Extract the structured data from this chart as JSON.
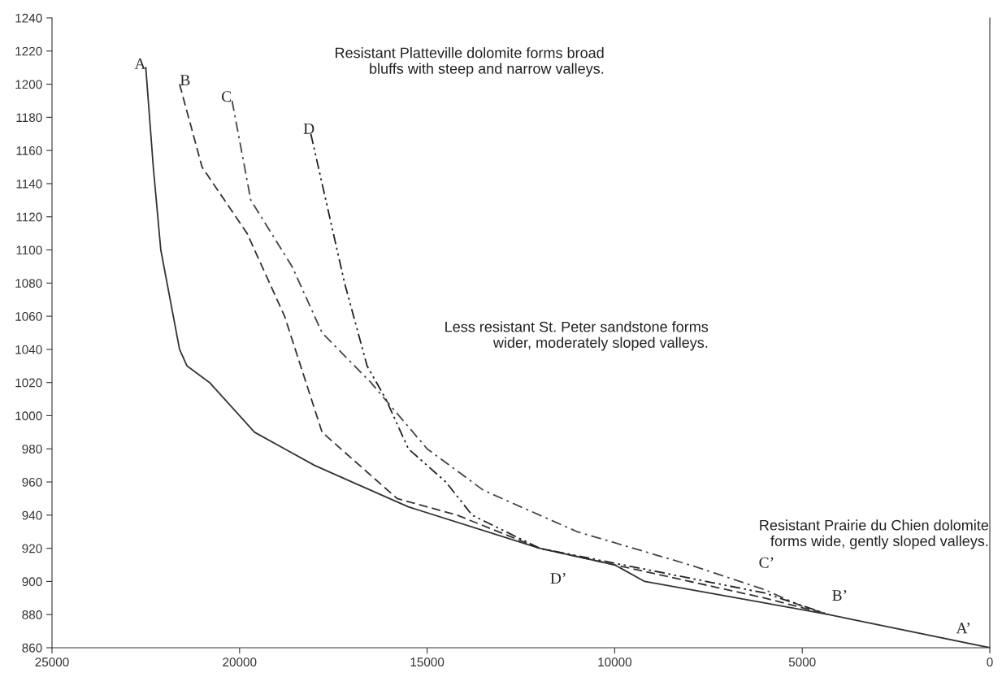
{
  "chart_data": {
    "type": "line",
    "xlim": [
      25000,
      0
    ],
    "xticks": [
      25000,
      20000,
      15000,
      10000,
      5000,
      0
    ],
    "ylim": [
      860,
      1240
    ],
    "yticks": [
      860,
      880,
      900,
      920,
      940,
      960,
      980,
      1000,
      1020,
      1040,
      1060,
      1080,
      1100,
      1120,
      1140,
      1160,
      1180,
      1200,
      1220,
      1240
    ],
    "grid": false,
    "marker": "none",
    "series": [
      {
        "color": "#333333",
        "line_style": "solid",
        "x": [
          22500,
          22300,
          22100,
          21600,
          21400,
          20800,
          19600,
          18800,
          18000,
          17000,
          15500,
          12000,
          10000,
          9200,
          6000,
          4300,
          0
        ],
        "values": [
          1210,
          1150,
          1100,
          1040,
          1030,
          1020,
          990,
          980,
          970,
          960,
          945,
          920,
          910,
          900,
          887,
          880,
          860
        ]
      },
      {
        "color": "#333333",
        "line_style": "dashed",
        "x": [
          21600,
          21000,
          19800,
          18800,
          17800,
          16800,
          15800,
          14200,
          12000,
          10000,
          6000,
          4300
        ],
        "values": [
          1200,
          1150,
          1110,
          1060,
          990,
          970,
          950,
          940,
          920,
          910,
          890,
          880
        ]
      },
      {
        "color": "#444444",
        "line_style": "dashdot",
        "x": [
          20200,
          19700,
          18600,
          17800,
          16500,
          15000,
          13500,
          11000,
          8000,
          6000,
          5000,
          4300
        ],
        "values": [
          1190,
          1130,
          1090,
          1050,
          1020,
          980,
          955,
          930,
          910,
          895,
          885,
          880
        ]
      },
      {
        "color": "#222222",
        "line_style": "dashdotdot",
        "x": [
          18100,
          17600,
          17200,
          16600,
          16100,
          15500,
          14500,
          13800,
          12000,
          10000,
          6000,
          4300
        ],
        "values": [
          1170,
          1120,
          1080,
          1030,
          1010,
          980,
          960,
          940,
          920,
          911,
          893,
          880
        ]
      }
    ],
    "annotations": [
      "A",
      "B",
      "C",
      "D",
      "D’",
      "C’",
      "B’",
      "A’",
      "Resistant Platteville dolomite forms broad\nbluffs with steep and narrow valleys.",
      "Less resistant St. Peter sandstone forms\nwider, moderately sloped valleys.",
      "Resistant Prairie du Chien dolomite\nforms wide, gently sloped valleys."
    ]
  }
}
